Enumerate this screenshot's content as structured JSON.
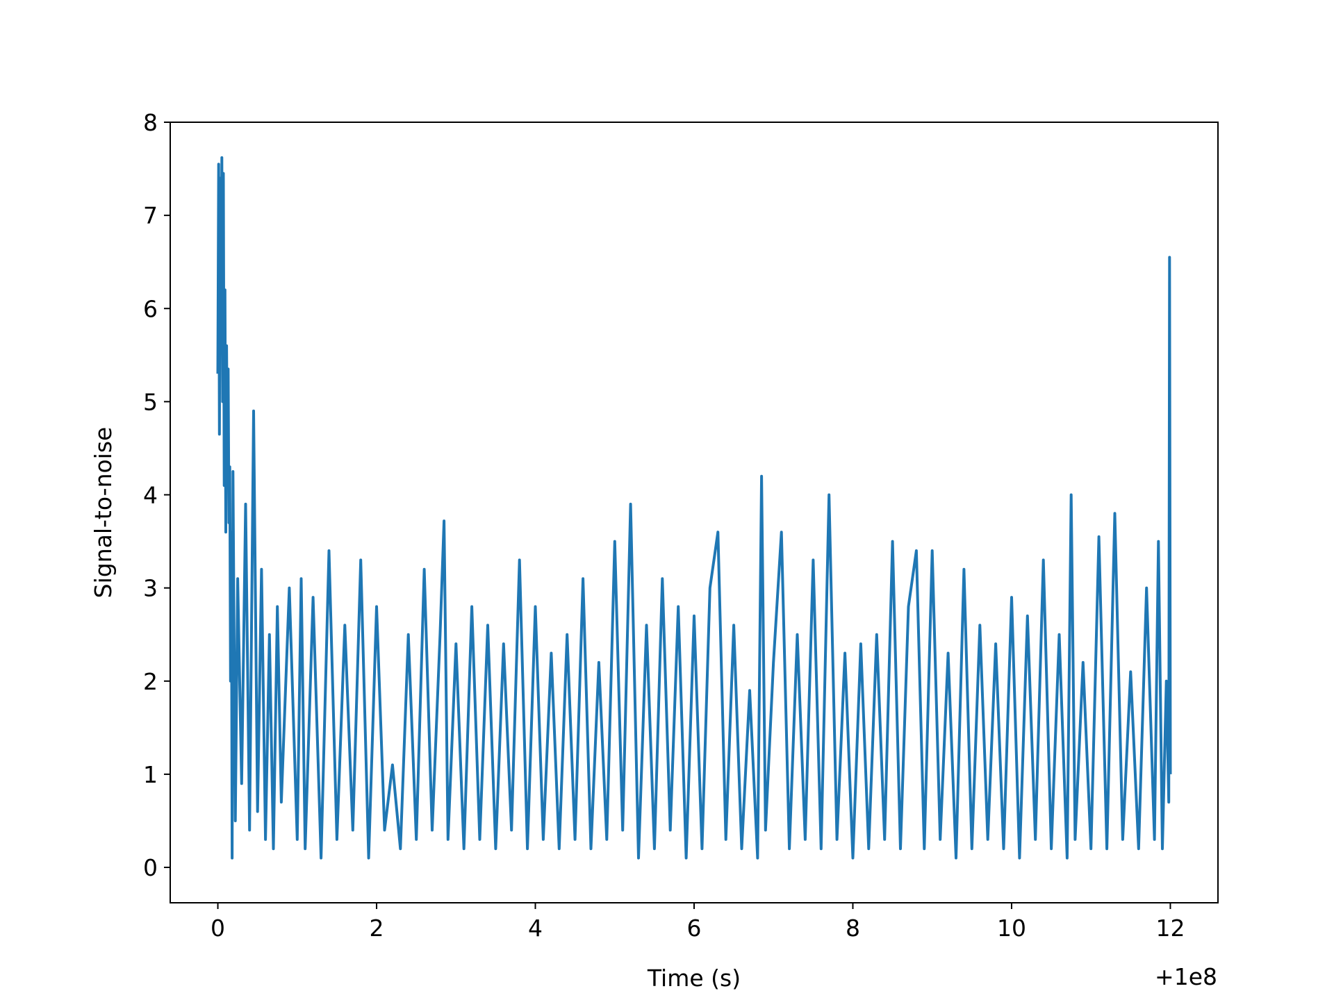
{
  "chart_data": {
    "type": "line",
    "title": "",
    "xlabel": "Time (s)",
    "ylabel": "Signal-to-noise",
    "x_offset_label": "+1e8",
    "xlim": [
      -0.6,
      12.6
    ],
    "ylim": [
      -0.38,
      8.0
    ],
    "x_ticks": [
      0,
      2,
      4,
      6,
      8,
      10,
      12
    ],
    "x_tick_labels": [
      "0",
      "2",
      "4",
      "6",
      "8",
      "10",
      "12"
    ],
    "y_ticks": [
      0,
      1,
      2,
      3,
      4,
      5,
      6,
      7,
      8
    ],
    "y_tick_labels": [
      "0",
      "1",
      "2",
      "3",
      "4",
      "5",
      "6",
      "7",
      "8"
    ],
    "grid": false,
    "legend": "none",
    "series": [
      {
        "color": "#1f77b4",
        "points": [
          [
            0.0,
            5.3
          ],
          [
            0.01,
            7.55
          ],
          [
            0.02,
            4.65
          ],
          [
            0.03,
            7.4
          ],
          [
            0.04,
            6.0
          ],
          [
            0.05,
            7.62
          ],
          [
            0.06,
            5.0
          ],
          [
            0.07,
            7.45
          ],
          [
            0.08,
            4.1
          ],
          [
            0.09,
            6.2
          ],
          [
            0.1,
            3.6
          ],
          [
            0.11,
            5.6
          ],
          [
            0.12,
            4.3
          ],
          [
            0.13,
            5.35
          ],
          [
            0.14,
            3.7
          ],
          [
            0.15,
            4.3
          ],
          [
            0.16,
            2.0
          ],
          [
            0.17,
            3.6
          ],
          [
            0.18,
            0.1
          ],
          [
            0.19,
            4.25
          ],
          [
            0.22,
            0.5
          ],
          [
            0.25,
            3.1
          ],
          [
            0.3,
            0.9
          ],
          [
            0.35,
            3.9
          ],
          [
            0.4,
            0.4
          ],
          [
            0.45,
            4.9
          ],
          [
            0.5,
            0.6
          ],
          [
            0.55,
            3.2
          ],
          [
            0.6,
            0.3
          ],
          [
            0.65,
            2.5
          ],
          [
            0.7,
            0.2
          ],
          [
            0.75,
            2.8
          ],
          [
            0.8,
            0.7
          ],
          [
            0.9,
            3.0
          ],
          [
            1.0,
            0.3
          ],
          [
            1.05,
            3.1
          ],
          [
            1.1,
            0.2
          ],
          [
            1.2,
            2.9
          ],
          [
            1.3,
            0.1
          ],
          [
            1.4,
            3.4
          ],
          [
            1.5,
            0.3
          ],
          [
            1.6,
            2.6
          ],
          [
            1.7,
            0.4
          ],
          [
            1.8,
            3.3
          ],
          [
            1.9,
            0.1
          ],
          [
            2.0,
            2.8
          ],
          [
            2.1,
            0.4
          ],
          [
            2.2,
            1.1
          ],
          [
            2.3,
            0.2
          ],
          [
            2.4,
            2.5
          ],
          [
            2.5,
            0.3
          ],
          [
            2.6,
            3.2
          ],
          [
            2.7,
            0.4
          ],
          [
            2.8,
            2.5
          ],
          [
            2.85,
            3.72
          ],
          [
            2.9,
            0.3
          ],
          [
            3.0,
            2.4
          ],
          [
            3.1,
            0.2
          ],
          [
            3.2,
            2.8
          ],
          [
            3.3,
            0.3
          ],
          [
            3.4,
            2.6
          ],
          [
            3.5,
            0.2
          ],
          [
            3.6,
            2.4
          ],
          [
            3.7,
            0.4
          ],
          [
            3.8,
            3.3
          ],
          [
            3.9,
            0.2
          ],
          [
            4.0,
            2.8
          ],
          [
            4.1,
            0.3
          ],
          [
            4.2,
            2.3
          ],
          [
            4.3,
            0.2
          ],
          [
            4.4,
            2.5
          ],
          [
            4.5,
            0.3
          ],
          [
            4.6,
            3.1
          ],
          [
            4.7,
            0.2
          ],
          [
            4.8,
            2.2
          ],
          [
            4.9,
            0.3
          ],
          [
            5.0,
            3.5
          ],
          [
            5.1,
            0.4
          ],
          [
            5.2,
            3.9
          ],
          [
            5.3,
            0.1
          ],
          [
            5.4,
            2.6
          ],
          [
            5.5,
            0.2
          ],
          [
            5.6,
            3.1
          ],
          [
            5.7,
            0.4
          ],
          [
            5.8,
            2.8
          ],
          [
            5.9,
            0.1
          ],
          [
            6.0,
            2.7
          ],
          [
            6.1,
            0.2
          ],
          [
            6.2,
            3.0
          ],
          [
            6.3,
            3.6
          ],
          [
            6.4,
            0.3
          ],
          [
            6.5,
            2.6
          ],
          [
            6.6,
            0.2
          ],
          [
            6.7,
            1.9
          ],
          [
            6.8,
            0.1
          ],
          [
            6.85,
            4.2
          ],
          [
            6.9,
            0.4
          ],
          [
            7.0,
            2.2
          ],
          [
            7.1,
            3.6
          ],
          [
            7.2,
            0.2
          ],
          [
            7.3,
            2.5
          ],
          [
            7.4,
            0.3
          ],
          [
            7.5,
            3.3
          ],
          [
            7.6,
            0.2
          ],
          [
            7.7,
            4.0
          ],
          [
            7.8,
            0.3
          ],
          [
            7.9,
            2.3
          ],
          [
            8.0,
            0.1
          ],
          [
            8.1,
            2.4
          ],
          [
            8.2,
            0.2
          ],
          [
            8.3,
            2.5
          ],
          [
            8.4,
            0.3
          ],
          [
            8.5,
            3.5
          ],
          [
            8.6,
            0.2
          ],
          [
            8.7,
            2.8
          ],
          [
            8.8,
            3.4
          ],
          [
            8.9,
            0.2
          ],
          [
            9.0,
            3.4
          ],
          [
            9.1,
            0.3
          ],
          [
            9.2,
            2.3
          ],
          [
            9.3,
            0.1
          ],
          [
            9.4,
            3.2
          ],
          [
            9.5,
            0.2
          ],
          [
            9.6,
            2.6
          ],
          [
            9.7,
            0.3
          ],
          [
            9.8,
            2.4
          ],
          [
            9.9,
            0.2
          ],
          [
            10.0,
            2.9
          ],
          [
            10.1,
            0.1
          ],
          [
            10.2,
            2.7
          ],
          [
            10.3,
            0.3
          ],
          [
            10.4,
            3.3
          ],
          [
            10.5,
            0.2
          ],
          [
            10.6,
            2.5
          ],
          [
            10.7,
            0.1
          ],
          [
            10.75,
            4.0
          ],
          [
            10.8,
            0.3
          ],
          [
            10.9,
            2.2
          ],
          [
            11.0,
            0.2
          ],
          [
            11.1,
            3.55
          ],
          [
            11.2,
            0.2
          ],
          [
            11.3,
            3.8
          ],
          [
            11.4,
            0.3
          ],
          [
            11.5,
            2.1
          ],
          [
            11.6,
            0.2
          ],
          [
            11.7,
            3.0
          ],
          [
            11.8,
            0.3
          ],
          [
            11.85,
            3.5
          ],
          [
            11.9,
            0.2
          ],
          [
            11.95,
            2.0
          ],
          [
            11.98,
            0.7
          ],
          [
            11.99,
            6.55
          ],
          [
            12.0,
            1.0
          ]
        ]
      }
    ]
  }
}
